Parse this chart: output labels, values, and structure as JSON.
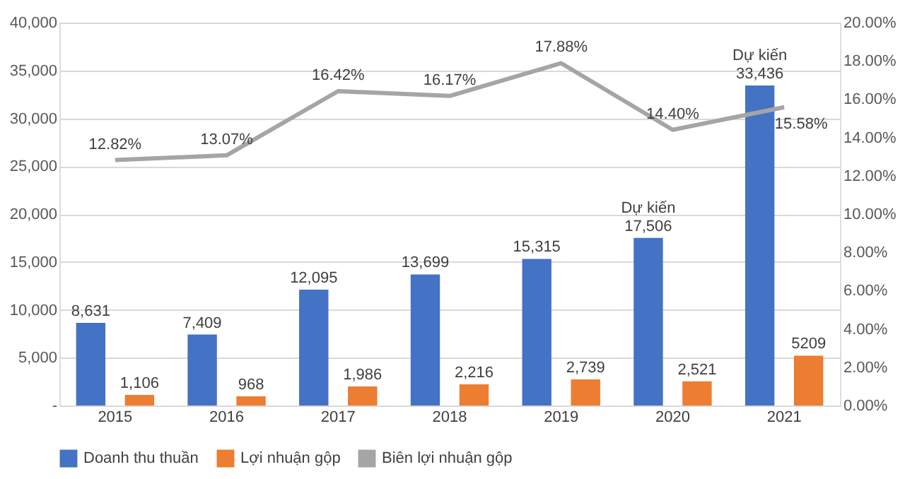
{
  "chart_data": {
    "type": "bar",
    "categories": [
      "2015",
      "2016",
      "2017",
      "2018",
      "2019",
      "2020",
      "2021"
    ],
    "series": [
      {
        "name": "Doanh thu thuần",
        "color": "#4472c4",
        "values": [
          8631,
          7409,
          12095,
          13699,
          15315,
          17506,
          33436
        ],
        "value_labels": [
          "8,631",
          "7,409",
          "12,095",
          "13,699",
          "15,315",
          "Dự kiến\n17,506",
          "Dự kiến\n33,436"
        ]
      },
      {
        "name": "Lợi nhuận gộp",
        "color": "#ed7d31",
        "values": [
          1106,
          968,
          1986,
          2216,
          2739,
          2521,
          5209
        ],
        "value_labels": [
          "1,106",
          "968",
          "1,986",
          "2,216",
          "2,739",
          "2,521",
          "5209"
        ]
      },
      {
        "name": "Biên lợi nhuận gộp",
        "type": "line",
        "axis": "y2",
        "color": "#a5a5a5",
        "values": [
          12.82,
          13.07,
          16.42,
          16.17,
          17.88,
          14.4,
          15.58
        ],
        "value_labels": [
          "12.82%",
          "13.07%",
          "16.42%",
          "16.17%",
          "17.88%",
          "14.40%",
          "15.58%"
        ]
      }
    ],
    "ylim": [
      0,
      40000
    ],
    "yticks": [
      {
        "value": 0,
        "label": "-"
      },
      {
        "value": 5000,
        "label": "5,000"
      },
      {
        "value": 10000,
        "label": "10,000"
      },
      {
        "value": 15000,
        "label": "15,000"
      },
      {
        "value": 20000,
        "label": "20,000"
      },
      {
        "value": 25000,
        "label": "25,000"
      },
      {
        "value": 30000,
        "label": "30,000"
      },
      {
        "value": 35000,
        "label": "35,000"
      },
      {
        "value": 40000,
        "label": "40,000"
      }
    ],
    "y2lim": [
      0,
      20
    ],
    "y2ticks": [
      {
        "value": 0,
        "label": "0.00%"
      },
      {
        "value": 2,
        "label": "2.00%"
      },
      {
        "value": 4,
        "label": "4.00%"
      },
      {
        "value": 6,
        "label": "6.00%"
      },
      {
        "value": 8,
        "label": "8.00%"
      },
      {
        "value": 10,
        "label": "10.00%"
      },
      {
        "value": 12,
        "label": "12.00%"
      },
      {
        "value": 14,
        "label": "14.00%"
      },
      {
        "value": 16,
        "label": "16.00%"
      },
      {
        "value": 18,
        "label": "18.00%"
      },
      {
        "value": 20,
        "label": "20.00%"
      }
    ],
    "grid": "y",
    "legend": "bottom",
    "marker": "none",
    "line_style": "solid"
  }
}
